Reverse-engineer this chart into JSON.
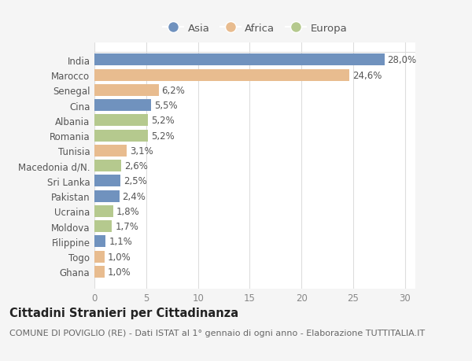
{
  "countries": [
    "India",
    "Marocco",
    "Senegal",
    "Cina",
    "Albania",
    "Romania",
    "Tunisia",
    "Macedonia d/N.",
    "Sri Lanka",
    "Pakistan",
    "Ucraina",
    "Moldova",
    "Filippine",
    "Togo",
    "Ghana"
  ],
  "values": [
    28.0,
    24.6,
    6.2,
    5.5,
    5.2,
    5.2,
    3.1,
    2.6,
    2.5,
    2.4,
    1.8,
    1.7,
    1.1,
    1.0,
    1.0
  ],
  "continents": [
    "Asia",
    "Africa",
    "Africa",
    "Asia",
    "Europa",
    "Europa",
    "Africa",
    "Europa",
    "Asia",
    "Asia",
    "Europa",
    "Europa",
    "Asia",
    "Africa",
    "Africa"
  ],
  "colors": {
    "Asia": "#7092be",
    "Africa": "#e8bc8f",
    "Europa": "#b5c98e"
  },
  "legend_labels": [
    "Asia",
    "Africa",
    "Europa"
  ],
  "title": "Cittadini Stranieri per Cittadinanza",
  "subtitle": "COMUNE DI POVIGLIO (RE) - Dati ISTAT al 1° gennaio di ogni anno - Elaborazione TUTTITALIA.IT",
  "xlim": [
    0,
    31
  ],
  "xticks": [
    0,
    5,
    10,
    15,
    20,
    25,
    30
  ],
  "background_color": "#f5f5f5",
  "plot_background": "#ffffff",
  "grid_color": "#dddddd",
  "bar_height": 0.78,
  "title_fontsize": 10.5,
  "subtitle_fontsize": 8,
  "label_fontsize": 8.5,
  "tick_fontsize": 8.5,
  "legend_fontsize": 9.5
}
